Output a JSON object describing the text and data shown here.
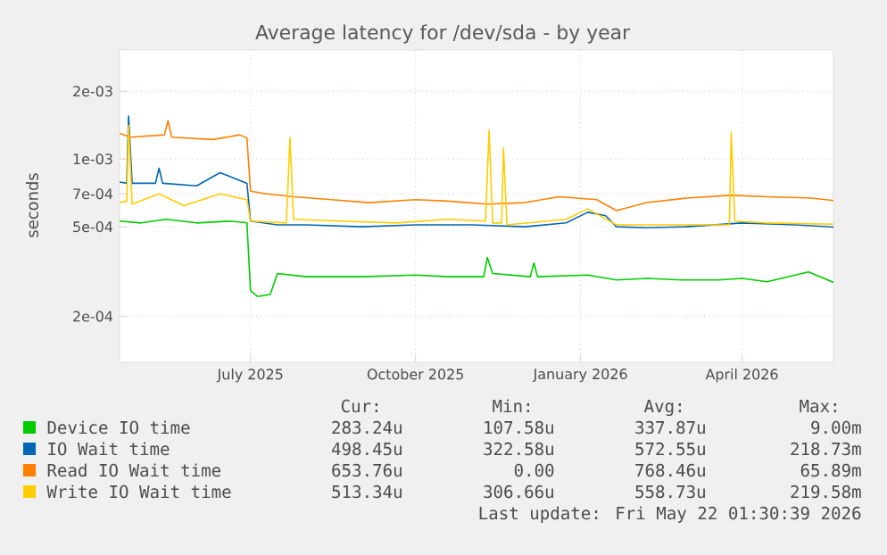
{
  "chart_data": {
    "type": "line",
    "title": "Average latency for /dev/sda - by year",
    "ylabel": "seconds",
    "log": "y",
    "grid": true,
    "legend": "bottom",
    "marker": "none",
    "line_style": "solid",
    "xlim": [
      "2025-04-19",
      "2026-05-22"
    ],
    "xticks": [
      {
        "value": "2025-07-01",
        "label": "July 2025"
      },
      {
        "value": "2025-10-01",
        "label": "October 2025"
      },
      {
        "value": "2026-01-01",
        "label": "January 2026"
      },
      {
        "value": "2026-04-01",
        "label": "April 2026"
      }
    ],
    "ylim": [
      0.000125,
      0.00305
    ],
    "yticks": [
      {
        "value": 0.0002,
        "label": "2e-04"
      },
      {
        "value": 0.0005,
        "label": "5e-04"
      },
      {
        "value": 0.0007,
        "label": "7e-04"
      },
      {
        "value": 0.001,
        "label": "1e-03"
      },
      {
        "value": 0.002,
        "label": "2e-03"
      }
    ],
    "series": [
      {
        "name": "Device IO time",
        "color": "#00cc00",
        "x": [
          "2025-04-19",
          "2025-05-01",
          "2025-05-15",
          "2025-06-01",
          "2025-06-20",
          "2025-06-29",
          "2025-07-01",
          "2025-07-05",
          "2025-07-12",
          "2025-07-16",
          "2025-08-01",
          "2025-09-01",
          "2025-10-01",
          "2025-10-19",
          "2025-11-08",
          "2025-11-10",
          "2025-11-13",
          "2025-12-04",
          "2025-12-06",
          "2025-12-08",
          "2026-01-05",
          "2026-01-21",
          "2026-02-07",
          "2026-02-27",
          "2026-03-19",
          "2026-04-01",
          "2026-04-15",
          "2026-05-08",
          "2026-05-22"
        ],
        "values": [
          0.00053,
          0.00052,
          0.00054,
          0.00052,
          0.00053,
          0.00052,
          0.00026,
          0.000245,
          0.00025,
          0.00031,
          0.0003,
          0.0003,
          0.000305,
          0.0003,
          0.0003,
          0.000365,
          0.00031,
          0.0003,
          0.000345,
          0.0003,
          0.000305,
          0.00029,
          0.000295,
          0.00029,
          0.00029,
          0.000295,
          0.000285,
          0.000315,
          0.000283
        ]
      },
      {
        "name": "IO Wait time",
        "color": "#0066b3",
        "x": [
          "2025-04-19",
          "2025-04-23",
          "2025-04-24",
          "2025-04-26",
          "2025-05-09",
          "2025-05-11",
          "2025-05-13",
          "2025-06-01",
          "2025-06-14",
          "2025-06-29",
          "2025-07-01",
          "2025-07-16",
          "2025-08-01",
          "2025-09-01",
          "2025-10-01",
          "2025-11-01",
          "2025-12-01",
          "2025-12-24",
          "2026-01-05",
          "2026-01-15",
          "2026-01-21",
          "2026-02-07",
          "2026-03-01",
          "2026-04-01",
          "2026-05-01",
          "2026-05-22"
        ],
        "values": [
          0.00079,
          0.00078,
          0.00155,
          0.00078,
          0.00078,
          0.00091,
          0.00078,
          0.00076,
          0.00087,
          0.00078,
          0.00053,
          0.00051,
          0.00051,
          0.0005,
          0.00051,
          0.00051,
          0.0005,
          0.00052,
          0.00058,
          0.00056,
          0.0005,
          0.000495,
          0.0005,
          0.00052,
          0.00051,
          0.000498
        ]
      },
      {
        "name": "Read IO Wait time",
        "color": "#ff8000",
        "x": [
          "2025-04-19",
          "2025-04-25",
          "2025-05-14",
          "2025-05-16",
          "2025-05-18",
          "2025-06-10",
          "2025-06-25",
          "2025-06-29",
          "2025-07-01",
          "2025-07-10",
          "2025-07-25",
          "2025-08-15",
          "2025-09-05",
          "2025-10-01",
          "2025-10-19",
          "2025-11-10",
          "2025-12-01",
          "2025-12-20",
          "2026-01-10",
          "2026-01-21",
          "2026-02-07",
          "2026-03-01",
          "2026-03-26",
          "2026-04-15",
          "2026-05-10",
          "2026-05-22"
        ],
        "values": [
          0.0013,
          0.00125,
          0.00128,
          0.00148,
          0.00125,
          0.00122,
          0.00128,
          0.00124,
          0.00072,
          0.0007,
          0.00068,
          0.00066,
          0.00064,
          0.00066,
          0.00065,
          0.00063,
          0.00064,
          0.00068,
          0.00066,
          0.00059,
          0.00064,
          0.00067,
          0.00069,
          0.00068,
          0.00067,
          0.000654
        ]
      },
      {
        "name": "Write IO Wait time",
        "color": "#ffcc00",
        "x": [
          "2025-04-19",
          "2025-04-23",
          "2025-04-24",
          "2025-04-26",
          "2025-05-11",
          "2025-05-25",
          "2025-06-14",
          "2025-06-29",
          "2025-07-01",
          "2025-07-21",
          "2025-07-23",
          "2025-07-25",
          "2025-08-20",
          "2025-09-20",
          "2025-10-19",
          "2025-11-09",
          "2025-11-11",
          "2025-11-13",
          "2025-11-18",
          "2025-11-19",
          "2025-11-21",
          "2025-12-24",
          "2026-01-05",
          "2026-01-21",
          "2026-02-27",
          "2026-03-25",
          "2026-03-26",
          "2026-03-28",
          "2026-04-15",
          "2026-05-22"
        ],
        "values": [
          0.00064,
          0.00065,
          0.00141,
          0.00063,
          0.0007,
          0.00062,
          0.0007,
          0.00066,
          0.00053,
          0.00052,
          0.00125,
          0.00054,
          0.00053,
          0.00052,
          0.00054,
          0.00053,
          0.00134,
          0.00052,
          0.00052,
          0.00112,
          0.00051,
          0.00054,
          0.0006,
          0.00051,
          0.00051,
          0.00051,
          0.00131,
          0.00053,
          0.00052,
          0.000513
        ]
      }
    ],
    "annotations": [
      "Cur:",
      "Min:",
      "Avg:",
      "Max:",
      "283.24u",
      "107.58u",
      "337.87u",
      "9.00m",
      "498.45u",
      "322.58u",
      "572.55u",
      "218.73m",
      "653.76u",
      "0.00",
      "768.46u",
      "65.89m",
      "513.34u",
      "306.66u",
      "558.73u",
      "219.58m",
      "Last update: Fri May 22 01:30:39 2026"
    ]
  }
}
